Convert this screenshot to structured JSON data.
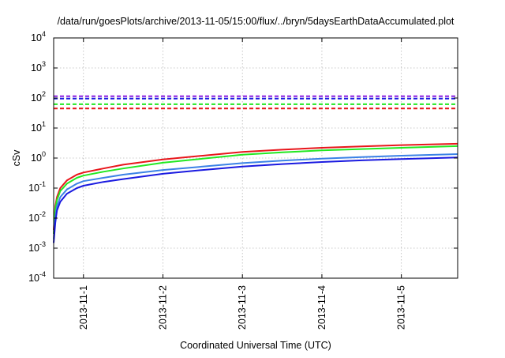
{
  "chart_data": {
    "type": "line",
    "title": "/data/run/goesPlots/archive/2013-11-05/15:00/flux/../bryn/5daysEarthDataAccumulated.plot",
    "xlabel": "Coordinated Universal Time (UTC)",
    "ylabel": "cSv",
    "y_scale": "log",
    "ylim": [
      0.0001,
      10000
    ],
    "xlim": [
      "2013-10-31T15:00",
      "2013-11-05T17:00"
    ],
    "x_ticks": [
      "2013-11-1",
      "2013-11-2",
      "2013-11-3",
      "2013-11-4",
      "2013-11-5"
    ],
    "y_ticks": [
      {
        "base": "10",
        "exp": "-4",
        "value": 0.0001
      },
      {
        "base": "10",
        "exp": "-3",
        "value": 0.001
      },
      {
        "base": "10",
        "exp": "-2",
        "value": 0.01
      },
      {
        "base": "10",
        "exp": "-1",
        "value": 0.1
      },
      {
        "base": "10",
        "exp": "0",
        "value": 1
      },
      {
        "base": "10",
        "exp": "1",
        "value": 10
      },
      {
        "base": "10",
        "exp": "2",
        "value": 100
      },
      {
        "base": "10",
        "exp": "3",
        "value": 1000
      },
      {
        "base": "10",
        "exp": "4",
        "value": 10000
      }
    ],
    "grid": true,
    "series": [
      {
        "color": "#e8161b",
        "style": "solid",
        "x": [
          "2013-10-31T15:00",
          "2013-10-31T15:30",
          "2013-10-31T16:00",
          "2013-10-31T17:00",
          "2013-10-31T19:00",
          "2013-10-31T22:00",
          "2013-11-01T00:00",
          "2013-11-01T06:00",
          "2013-11-01T12:00",
          "2013-11-02T00:00",
          "2013-11-02T12:00",
          "2013-11-03T00:00",
          "2013-11-03T12:00",
          "2013-11-04T00:00",
          "2013-11-04T12:00",
          "2013-11-05T00:00",
          "2013-11-05T17:00"
        ],
        "y": [
          0.004,
          0.025,
          0.05,
          0.1,
          0.18,
          0.28,
          0.33,
          0.45,
          0.6,
          0.9,
          1.2,
          1.6,
          1.9,
          2.2,
          2.45,
          2.7,
          3.0
        ]
      },
      {
        "color": "#22e822",
        "style": "solid",
        "x": [
          "2013-10-31T15:00",
          "2013-10-31T15:30",
          "2013-10-31T16:00",
          "2013-10-31T17:00",
          "2013-10-31T19:00",
          "2013-10-31T22:00",
          "2013-11-01T00:00",
          "2013-11-01T06:00",
          "2013-11-01T12:00",
          "2013-11-02T00:00",
          "2013-11-02T12:00",
          "2013-11-03T00:00",
          "2013-11-03T12:00",
          "2013-11-04T00:00",
          "2013-11-04T12:00",
          "2013-11-05T00:00",
          "2013-11-05T17:00"
        ],
        "y": [
          0.003,
          0.02,
          0.04,
          0.08,
          0.14,
          0.22,
          0.26,
          0.35,
          0.45,
          0.7,
          0.95,
          1.3,
          1.55,
          1.8,
          2.0,
          2.2,
          2.5
        ]
      },
      {
        "color": "#3b82e6",
        "style": "solid",
        "x": [
          "2013-10-31T15:00",
          "2013-10-31T15:30",
          "2013-10-31T16:00",
          "2013-10-31T17:00",
          "2013-10-31T19:00",
          "2013-10-31T22:00",
          "2013-11-01T00:00",
          "2013-11-01T06:00",
          "2013-11-01T12:00",
          "2013-11-02T00:00",
          "2013-11-02T12:00",
          "2013-11-03T00:00",
          "2013-11-03T12:00",
          "2013-11-04T00:00",
          "2013-11-04T12:00",
          "2013-11-05T00:00",
          "2013-11-05T17:00"
        ],
        "y": [
          0.002,
          0.01,
          0.025,
          0.05,
          0.09,
          0.14,
          0.17,
          0.22,
          0.28,
          0.4,
          0.52,
          0.68,
          0.82,
          0.96,
          1.08,
          1.2,
          1.35
        ]
      },
      {
        "color": "#1a1ae0",
        "style": "solid",
        "x": [
          "2013-10-31T15:00",
          "2013-10-31T15:30",
          "2013-10-31T16:00",
          "2013-10-31T17:00",
          "2013-10-31T19:00",
          "2013-10-31T22:00",
          "2013-11-01T00:00",
          "2013-11-01T06:00",
          "2013-11-01T12:00",
          "2013-11-02T00:00",
          "2013-11-02T12:00",
          "2013-11-03T00:00",
          "2013-11-03T12:00",
          "2013-11-04T00:00",
          "2013-11-04T12:00",
          "2013-11-05T00:00",
          "2013-11-05T17:00"
        ],
        "y": [
          0.0015,
          0.007,
          0.018,
          0.035,
          0.065,
          0.1,
          0.12,
          0.16,
          0.2,
          0.3,
          0.4,
          0.52,
          0.63,
          0.74,
          0.84,
          0.93,
          1.05
        ]
      },
      {
        "color": "#8a1ee0",
        "style": "dashed",
        "x": [
          "2013-10-31T15:00",
          "2013-11-05T17:00"
        ],
        "y": [
          115,
          115
        ]
      },
      {
        "color": "#1a1ae0",
        "style": "dashed",
        "x": [
          "2013-10-31T15:00",
          "2013-11-05T17:00"
        ],
        "y": [
          95,
          95
        ]
      },
      {
        "color": "#22e822",
        "style": "dashed",
        "x": [
          "2013-10-31T15:00",
          "2013-11-05T17:00"
        ],
        "y": [
          62,
          62
        ]
      },
      {
        "color": "#e8161b",
        "style": "dashed",
        "x": [
          "2013-10-31T15:00",
          "2013-11-05T17:00"
        ],
        "y": [
          45,
          45
        ]
      }
    ]
  }
}
